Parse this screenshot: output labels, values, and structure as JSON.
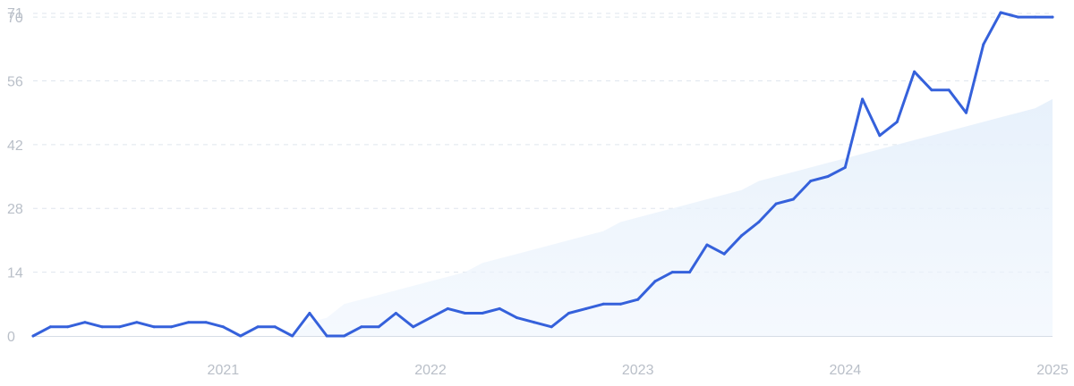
{
  "chart_data": {
    "type": "line",
    "title": "",
    "xlabel": "",
    "ylabel": "",
    "ylim": [
      0,
      71
    ],
    "xlim": [
      "2020-02",
      "2025-01"
    ],
    "grid": true,
    "legend": "none",
    "y_ticks": [
      {
        "value": 0,
        "label": "0"
      },
      {
        "value": 14,
        "label": "14"
      },
      {
        "value": 28,
        "label": "28"
      },
      {
        "value": 42,
        "label": "42"
      },
      {
        "value": 56,
        "label": "56"
      },
      {
        "value": 70,
        "label": "70"
      },
      {
        "value": 71,
        "label": "71"
      }
    ],
    "x_ticks": [
      {
        "value": "2021-01",
        "label": "2021"
      },
      {
        "value": "2022-01",
        "label": "2022"
      },
      {
        "value": "2023-01",
        "label": "2023"
      },
      {
        "value": "2024-01",
        "label": "2024"
      },
      {
        "value": "2025-01",
        "label": "2025"
      }
    ],
    "x": [
      "2020-02",
      "2020-03",
      "2020-04",
      "2020-05",
      "2020-06",
      "2020-07",
      "2020-08",
      "2020-09",
      "2020-10",
      "2020-11",
      "2020-12",
      "2021-01",
      "2021-02",
      "2021-03",
      "2021-04",
      "2021-05",
      "2021-06",
      "2021-07",
      "2021-08",
      "2021-09",
      "2021-10",
      "2021-11",
      "2021-12",
      "2022-01",
      "2022-02",
      "2022-03",
      "2022-04",
      "2022-05",
      "2022-06",
      "2022-07",
      "2022-08",
      "2022-09",
      "2022-10",
      "2022-11",
      "2022-12",
      "2023-01",
      "2023-02",
      "2023-03",
      "2023-04",
      "2023-05",
      "2023-06",
      "2023-07",
      "2023-08",
      "2023-09",
      "2023-10",
      "2023-11",
      "2023-12",
      "2024-01",
      "2024-02",
      "2024-03",
      "2024-04",
      "2024-05",
      "2024-06",
      "2024-07",
      "2024-08",
      "2024-09",
      "2024-10",
      "2024-11",
      "2024-12",
      "2025-01"
    ],
    "series": [
      {
        "values": [
          0,
          2,
          2,
          3,
          2,
          2,
          3,
          2,
          2,
          3,
          3,
          2,
          0,
          2,
          2,
          0,
          5,
          0,
          0,
          2,
          2,
          5,
          2,
          4,
          6,
          5,
          5,
          6,
          4,
          3,
          2,
          5,
          6,
          7,
          7,
          8,
          12,
          14,
          14,
          20,
          18,
          22,
          25,
          29,
          30,
          34,
          35,
          37,
          52,
          44,
          47,
          58,
          54,
          54,
          49,
          64,
          71,
          70,
          70,
          70
        ],
        "color": "#3561db"
      },
      {
        "values": [
          null,
          null,
          null,
          null,
          null,
          null,
          null,
          null,
          null,
          null,
          null,
          null,
          null,
          null,
          null,
          0,
          3,
          4,
          7,
          8,
          9,
          10,
          11,
          12,
          13,
          14,
          16,
          17,
          18,
          19,
          20,
          21,
          22,
          23,
          25,
          26,
          27,
          28,
          29,
          30,
          31,
          32,
          34,
          35,
          36,
          37,
          38,
          39,
          40,
          41,
          42,
          43,
          44,
          45,
          46,
          47,
          48,
          49,
          50,
          52
        ],
        "color": "#e9f2fc",
        "style": "area"
      }
    ]
  }
}
